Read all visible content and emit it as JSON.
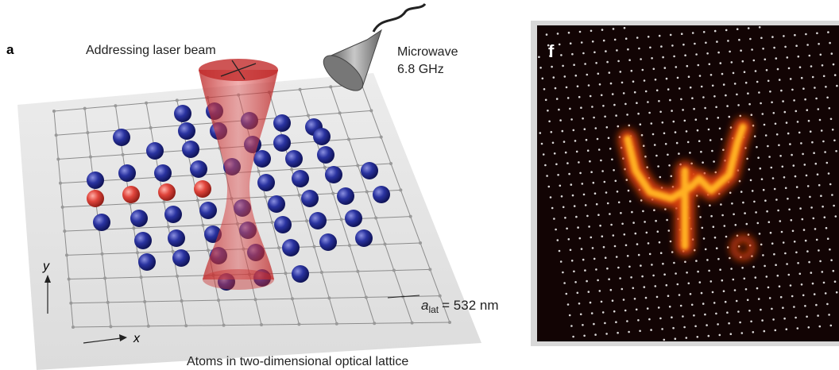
{
  "panel_a": {
    "label": "a",
    "beam_label": "Addressing laser beam",
    "microwave_label": [
      "Microwave",
      "6.8 GHz"
    ],
    "axis_y": "y",
    "axis_x": "x",
    "lattice_constant": {
      "symbol": "a",
      "subscript": "lat",
      "value": "= 532 nm"
    },
    "caption": "Atoms in two-dimensional optical lattice"
  },
  "panel_f": {
    "label": "f"
  }
}
